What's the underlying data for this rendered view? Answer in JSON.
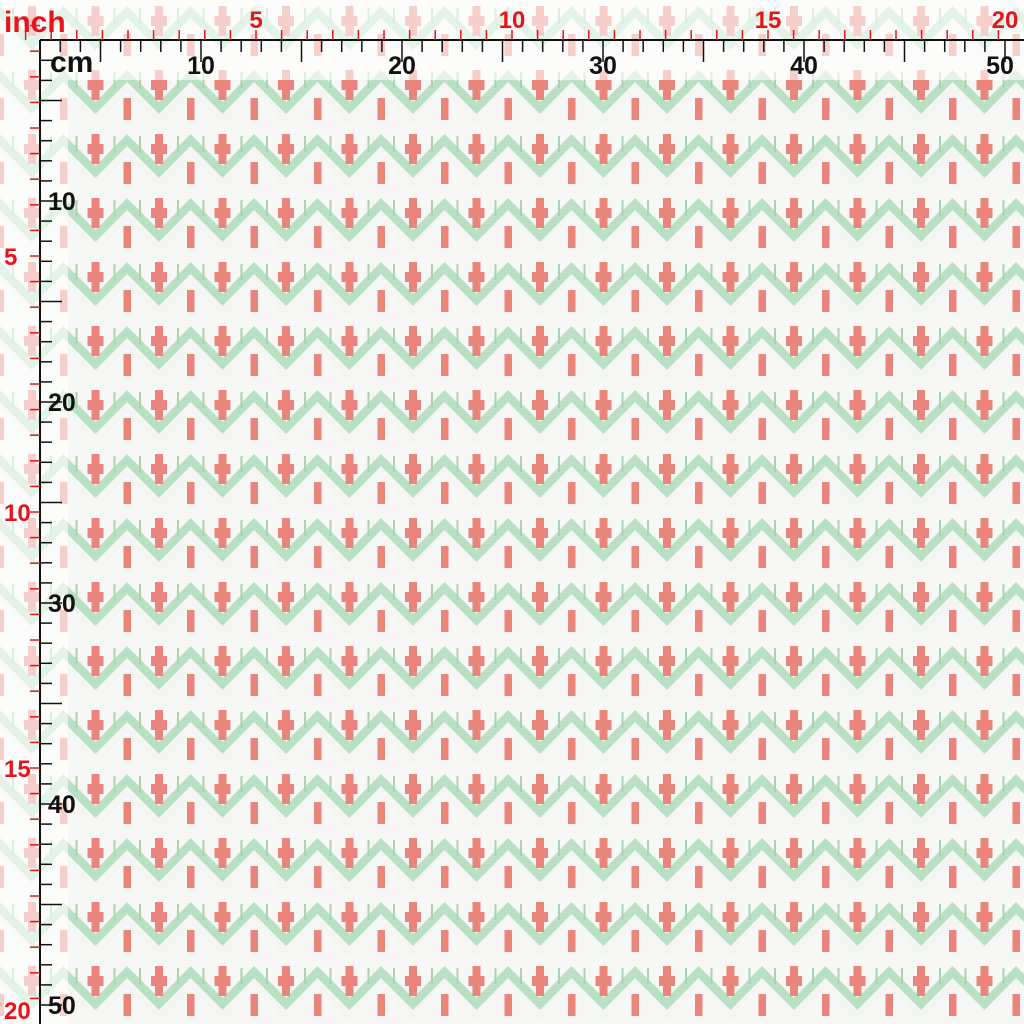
{
  "inch_ruler": {
    "unit_label": "inch",
    "top_labels": [
      5,
      10,
      15,
      20
    ],
    "left_labels": [
      5,
      10,
      15,
      20
    ]
  },
  "cm_ruler": {
    "unit_label": "cm",
    "top_labels": [
      10,
      20,
      30,
      40,
      50
    ],
    "left_labels": [
      10,
      20,
      30,
      40,
      50
    ]
  }
}
